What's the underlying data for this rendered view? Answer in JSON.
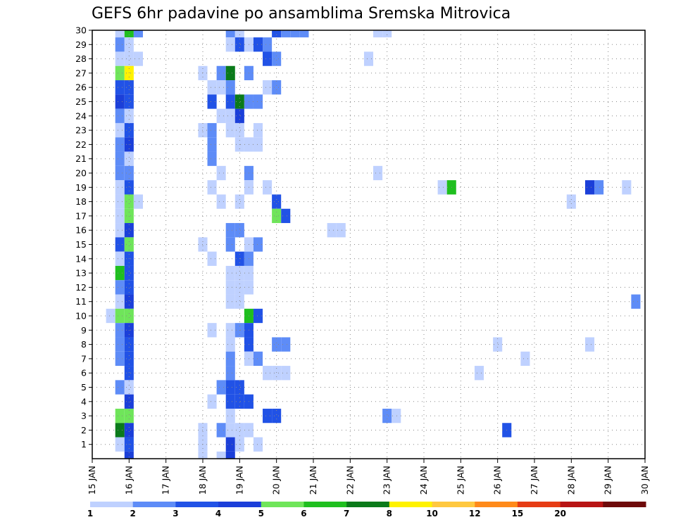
{
  "chart_data": {
    "type": "heatmap",
    "title": "GEFS 6hr padavine po ansamblima Sremska Mitrovica",
    "xlabel": "",
    "ylabel": "",
    "x_tick_labels": [
      "15 JAN",
      "16 JAN",
      "17 JAN",
      "18 JAN",
      "19 JAN",
      "20 JAN",
      "21 JAN",
      "22 JAN",
      "23 JAN",
      "24 JAN",
      "25 JAN",
      "26 JAN",
      "27 JAN",
      "28 JAN",
      "29 JAN",
      "30 JAN"
    ],
    "xlim": [
      15,
      30
    ],
    "y_tick_labels": [
      "1",
      "2",
      "3",
      "4",
      "5",
      "6",
      "7",
      "8",
      "9",
      "10",
      "11",
      "12",
      "13",
      "14",
      "15",
      "16",
      "17",
      "18",
      "19",
      "20",
      "21",
      "22",
      "23",
      "24",
      "25",
      "26",
      "27",
      "28",
      "29",
      "30"
    ],
    "ylim": [
      0,
      30
    ],
    "grid": true,
    "legend": {
      "placement": "bottom",
      "labels": [
        "1",
        "2",
        "3",
        "4",
        "5",
        "6",
        "7",
        "8",
        "10",
        "12",
        "15",
        "20"
      ],
      "colors": [
        "#bfd1ff",
        "#5e8cf7",
        "#2152e6",
        "#1b3fd9",
        "#6fe55a",
        "#1fbf1f",
        "#0a7a1a",
        "#fff200",
        "#ffc840",
        "#ff8a1a",
        "#e63c14",
        "#b81414",
        "#6e0a0a"
      ]
    },
    "cells": [
      {
        "member": 30,
        "day": 15.75,
        "value": 1.5
      },
      {
        "member": 30,
        "day": 16,
        "value": 6.5
      },
      {
        "member": 30,
        "day": 16.25,
        "value": 2.5
      },
      {
        "member": 30,
        "day": 18.75,
        "value": 2.5
      },
      {
        "member": 30,
        "day": 19,
        "value": 1.5
      },
      {
        "member": 30,
        "day": 20,
        "value": 3.5
      },
      {
        "member": 30,
        "day": 20.25,
        "value": 2.5
      },
      {
        "member": 30,
        "day": 20.5,
        "value": 2.5
      },
      {
        "member": 30,
        "day": 20.75,
        "value": 2.5
      },
      {
        "member": 30,
        "day": 22.75,
        "value": 1.5
      },
      {
        "member": 30,
        "day": 23,
        "value": 1.5
      },
      {
        "member": 29,
        "day": 15.75,
        "value": 2.5
      },
      {
        "member": 29,
        "day": 16,
        "value": 1.5
      },
      {
        "member": 29,
        "day": 18.75,
        "value": 1.5
      },
      {
        "member": 29,
        "day": 19,
        "value": 3.5
      },
      {
        "member": 29,
        "day": 19.25,
        "value": 1.5
      },
      {
        "member": 29,
        "day": 19.5,
        "value": 3.5
      },
      {
        "member": 29,
        "day": 19.75,
        "value": 2.5
      },
      {
        "member": 28,
        "day": 15.75,
        "value": 1.5
      },
      {
        "member": 28,
        "day": 16,
        "value": 1.5
      },
      {
        "member": 28,
        "day": 16.25,
        "value": 1.5
      },
      {
        "member": 28,
        "day": 19.75,
        "value": 3.5
      },
      {
        "member": 28,
        "day": 20,
        "value": 2.5
      },
      {
        "member": 28,
        "day": 22.5,
        "value": 1.5
      },
      {
        "member": 27,
        "day": 15.75,
        "value": 5.5
      },
      {
        "member": 27,
        "day": 16,
        "value": 9
      },
      {
        "member": 27,
        "day": 18,
        "value": 1.5
      },
      {
        "member": 27,
        "day": 18.5,
        "value": 2.5
      },
      {
        "member": 27,
        "day": 18.75,
        "value": 7.5
      },
      {
        "member": 27,
        "day": 19.25,
        "value": 2.5
      },
      {
        "member": 26,
        "day": 15.75,
        "value": 3.5
      },
      {
        "member": 26,
        "day": 16,
        "value": 3.5
      },
      {
        "member": 26,
        "day": 18.25,
        "value": 1.5
      },
      {
        "member": 26,
        "day": 18.5,
        "value": 1.5
      },
      {
        "member": 26,
        "day": 18.75,
        "value": 2.5
      },
      {
        "member": 26,
        "day": 19.75,
        "value": 1.5
      },
      {
        "member": 26,
        "day": 20,
        "value": 2.5
      },
      {
        "member": 25,
        "day": 15.75,
        "value": 4.5
      },
      {
        "member": 25,
        "day": 16,
        "value": 3.5
      },
      {
        "member": 25,
        "day": 18.25,
        "value": 3.5
      },
      {
        "member": 25,
        "day": 18.75,
        "value": 3.5
      },
      {
        "member": 25,
        "day": 19,
        "value": 7.5
      },
      {
        "member": 25,
        "day": 19.25,
        "value": 2.5
      },
      {
        "member": 25,
        "day": 19.5,
        "value": 2.5
      },
      {
        "member": 24,
        "day": 15.75,
        "value": 2.5
      },
      {
        "member": 24,
        "day": 16,
        "value": 1.5
      },
      {
        "member": 24,
        "day": 18.5,
        "value": 1.5
      },
      {
        "member": 24,
        "day": 18.75,
        "value": 1.5
      },
      {
        "member": 24,
        "day": 19,
        "value": 4.5
      },
      {
        "member": 23,
        "day": 15.75,
        "value": 1.5
      },
      {
        "member": 23,
        "day": 16,
        "value": 3.5
      },
      {
        "member": 23,
        "day": 18,
        "value": 1.5
      },
      {
        "member": 23,
        "day": 18.25,
        "value": 2.5
      },
      {
        "member": 23,
        "day": 18.75,
        "value": 1.5
      },
      {
        "member": 23,
        "day": 19,
        "value": 1.5
      },
      {
        "member": 23,
        "day": 19.5,
        "value": 1.5
      },
      {
        "member": 22,
        "day": 15.75,
        "value": 2.5
      },
      {
        "member": 22,
        "day": 16,
        "value": 4.5
      },
      {
        "member": 22,
        "day": 18.25,
        "value": 2.5
      },
      {
        "member": 22,
        "day": 19,
        "value": 1.5
      },
      {
        "member": 22,
        "day": 19.25,
        "value": 1.5
      },
      {
        "member": 22,
        "day": 19.5,
        "value": 1.5
      },
      {
        "member": 21,
        "day": 15.75,
        "value": 2.5
      },
      {
        "member": 21,
        "day": 16,
        "value": 1.5
      },
      {
        "member": 21,
        "day": 18.25,
        "value": 2.5
      },
      {
        "member": 20,
        "day": 15.75,
        "value": 2.5
      },
      {
        "member": 20,
        "day": 16,
        "value": 2.5
      },
      {
        "member": 20,
        "day": 18.5,
        "value": 1.5
      },
      {
        "member": 20,
        "day": 19.25,
        "value": 2.5
      },
      {
        "member": 20,
        "day": 22.75,
        "value": 1.5
      },
      {
        "member": 19,
        "day": 15.75,
        "value": 1.5
      },
      {
        "member": 19,
        "day": 16,
        "value": 3.5
      },
      {
        "member": 19,
        "day": 18.25,
        "value": 1.5
      },
      {
        "member": 19,
        "day": 19.25,
        "value": 1.5
      },
      {
        "member": 19,
        "day": 19.75,
        "value": 1.5
      },
      {
        "member": 19,
        "day": 24.5,
        "value": 1.5
      },
      {
        "member": 19,
        "day": 24.75,
        "value": 6.5
      },
      {
        "member": 19,
        "day": 28.5,
        "value": 4.5
      },
      {
        "member": 19,
        "day": 28.75,
        "value": 2.5
      },
      {
        "member": 19,
        "day": 29.5,
        "value": 1.5
      },
      {
        "member": 18,
        "day": 15.75,
        "value": 1.5
      },
      {
        "member": 18,
        "day": 16,
        "value": 5.5
      },
      {
        "member": 18,
        "day": 16.25,
        "value": 1.5
      },
      {
        "member": 18,
        "day": 18.5,
        "value": 1.5
      },
      {
        "member": 18,
        "day": 19,
        "value": 1.5
      },
      {
        "member": 18,
        "day": 20,
        "value": 3.5
      },
      {
        "member": 18,
        "day": 28,
        "value": 1.5
      },
      {
        "member": 17,
        "day": 15.75,
        "value": 1.5
      },
      {
        "member": 17,
        "day": 16,
        "value": 5.5
      },
      {
        "member": 17,
        "day": 20,
        "value": 5.5
      },
      {
        "member": 17,
        "day": 20.25,
        "value": 3.5
      },
      {
        "member": 16,
        "day": 15.75,
        "value": 1.5
      },
      {
        "member": 16,
        "day": 16,
        "value": 4.5
      },
      {
        "member": 16,
        "day": 18.75,
        "value": 2.5
      },
      {
        "member": 16,
        "day": 19,
        "value": 2.5
      },
      {
        "member": 16,
        "day": 21.5,
        "value": 1.5
      },
      {
        "member": 16,
        "day": 21.75,
        "value": 1.5
      },
      {
        "member": 15,
        "day": 15.75,
        "value": 3.5
      },
      {
        "member": 15,
        "day": 16,
        "value": 5.5
      },
      {
        "member": 15,
        "day": 18,
        "value": 1.5
      },
      {
        "member": 15,
        "day": 18.75,
        "value": 2.5
      },
      {
        "member": 15,
        "day": 19.25,
        "value": 1.5
      },
      {
        "member": 15,
        "day": 19.5,
        "value": 2.5
      },
      {
        "member": 14,
        "day": 15.75,
        "value": 1.5
      },
      {
        "member": 14,
        "day": 16,
        "value": 3.5
      },
      {
        "member": 14,
        "day": 18.25,
        "value": 1.5
      },
      {
        "member": 14,
        "day": 19,
        "value": 3.5
      },
      {
        "member": 14,
        "day": 19.25,
        "value": 2.5
      },
      {
        "member": 13,
        "day": 15.75,
        "value": 6.5
      },
      {
        "member": 13,
        "day": 16,
        "value": 3.5
      },
      {
        "member": 13,
        "day": 18.75,
        "value": 1.5
      },
      {
        "member": 13,
        "day": 19,
        "value": 1.5
      },
      {
        "member": 13,
        "day": 19.25,
        "value": 1.5
      },
      {
        "member": 12,
        "day": 15.75,
        "value": 2.5
      },
      {
        "member": 12,
        "day": 16,
        "value": 3.5
      },
      {
        "member": 12,
        "day": 18.75,
        "value": 1.5
      },
      {
        "member": 12,
        "day": 19,
        "value": 1.5
      },
      {
        "member": 12,
        "day": 19.25,
        "value": 1.5
      },
      {
        "member": 11,
        "day": 15.75,
        "value": 1.5
      },
      {
        "member": 11,
        "day": 16,
        "value": 4.5
      },
      {
        "member": 11,
        "day": 18.75,
        "value": 1.5
      },
      {
        "member": 11,
        "day": 19,
        "value": 1.5
      },
      {
        "member": 11,
        "day": 29.75,
        "value": 2.5
      },
      {
        "member": 10,
        "day": 15.5,
        "value": 1.5
      },
      {
        "member": 10,
        "day": 15.75,
        "value": 5.5
      },
      {
        "member": 10,
        "day": 16,
        "value": 5.5
      },
      {
        "member": 10,
        "day": 19.25,
        "value": 6.5
      },
      {
        "member": 10,
        "day": 19.5,
        "value": 3.5
      },
      {
        "member": 9,
        "day": 15.75,
        "value": 2.5
      },
      {
        "member": 9,
        "day": 16,
        "value": 4.5
      },
      {
        "member": 9,
        "day": 18.25,
        "value": 1.5
      },
      {
        "member": 9,
        "day": 18.75,
        "value": 1.5
      },
      {
        "member": 9,
        "day": 19,
        "value": 2.5
      },
      {
        "member": 9,
        "day": 19.25,
        "value": 3.5
      },
      {
        "member": 8,
        "day": 15.75,
        "value": 2.5
      },
      {
        "member": 8,
        "day": 16,
        "value": 3.5
      },
      {
        "member": 8,
        "day": 18.75,
        "value": 1.5
      },
      {
        "member": 8,
        "day": 19.25,
        "value": 3.5
      },
      {
        "member": 8,
        "day": 20,
        "value": 2.5
      },
      {
        "member": 8,
        "day": 20.25,
        "value": 2.5
      },
      {
        "member": 8,
        "day": 26,
        "value": 1.5
      },
      {
        "member": 8,
        "day": 28.5,
        "value": 1.5
      },
      {
        "member": 7,
        "day": 15.75,
        "value": 2.5
      },
      {
        "member": 7,
        "day": 16,
        "value": 3.5
      },
      {
        "member": 7,
        "day": 18.75,
        "value": 2.5
      },
      {
        "member": 7,
        "day": 19.25,
        "value": 1.5
      },
      {
        "member": 7,
        "day": 19.5,
        "value": 2.5
      },
      {
        "member": 7,
        "day": 26.75,
        "value": 1.5
      },
      {
        "member": 6,
        "day": 16,
        "value": 3.5
      },
      {
        "member": 6,
        "day": 18.75,
        "value": 2.5
      },
      {
        "member": 6,
        "day": 19.75,
        "value": 1.5
      },
      {
        "member": 6,
        "day": 20,
        "value": 1.5
      },
      {
        "member": 6,
        "day": 20.25,
        "value": 1.5
      },
      {
        "member": 6,
        "day": 25.5,
        "value": 1.5
      },
      {
        "member": 5,
        "day": 15.75,
        "value": 2.5
      },
      {
        "member": 5,
        "day": 16,
        "value": 1.5
      },
      {
        "member": 5,
        "day": 18.5,
        "value": 2.5
      },
      {
        "member": 5,
        "day": 18.75,
        "value": 3.5
      },
      {
        "member": 5,
        "day": 19,
        "value": 3.5
      },
      {
        "member": 4,
        "day": 16,
        "value": 4.5
      },
      {
        "member": 4,
        "day": 18.25,
        "value": 1.5
      },
      {
        "member": 4,
        "day": 18.75,
        "value": 3.5
      },
      {
        "member": 4,
        "day": 19,
        "value": 3.5
      },
      {
        "member": 4,
        "day": 19.25,
        "value": 3.5
      },
      {
        "member": 3,
        "day": 15.75,
        "value": 5.5
      },
      {
        "member": 3,
        "day": 16,
        "value": 5.5
      },
      {
        "member": 3,
        "day": 18.75,
        "value": 1.5
      },
      {
        "member": 3,
        "day": 19.75,
        "value": 3.5
      },
      {
        "member": 3,
        "day": 20,
        "value": 3.5
      },
      {
        "member": 3,
        "day": 23,
        "value": 2.5
      },
      {
        "member": 3,
        "day": 23.25,
        "value": 1.5
      },
      {
        "member": 2,
        "day": 15.75,
        "value": 7.5
      },
      {
        "member": 2,
        "day": 16,
        "value": 4.5
      },
      {
        "member": 2,
        "day": 18,
        "value": 1.5
      },
      {
        "member": 2,
        "day": 18.5,
        "value": 2.5
      },
      {
        "member": 2,
        "day": 18.75,
        "value": 1.5
      },
      {
        "member": 2,
        "day": 19,
        "value": 1.5
      },
      {
        "member": 2,
        "day": 19.25,
        "value": 1.5
      },
      {
        "member": 2,
        "day": 26.25,
        "value": 3.5
      },
      {
        "member": 1,
        "day": 15.75,
        "value": 1.5
      },
      {
        "member": 1,
        "day": 16,
        "value": 3.5
      },
      {
        "member": 1,
        "day": 18,
        "value": 1.5
      },
      {
        "member": 1,
        "day": 18.75,
        "value": 4.5
      },
      {
        "member": 1,
        "day": 19,
        "value": 1.5
      },
      {
        "member": 1,
        "day": 19.5,
        "value": 1.5
      },
      {
        "member": 0,
        "day": 18,
        "value": 1.5
      },
      {
        "member": 0,
        "day": 18.5,
        "value": 1.5
      },
      {
        "member": 0,
        "day": 18.75,
        "value": 4.5
      },
      {
        "member": 0,
        "day": 16,
        "value": 4.5
      }
    ]
  }
}
